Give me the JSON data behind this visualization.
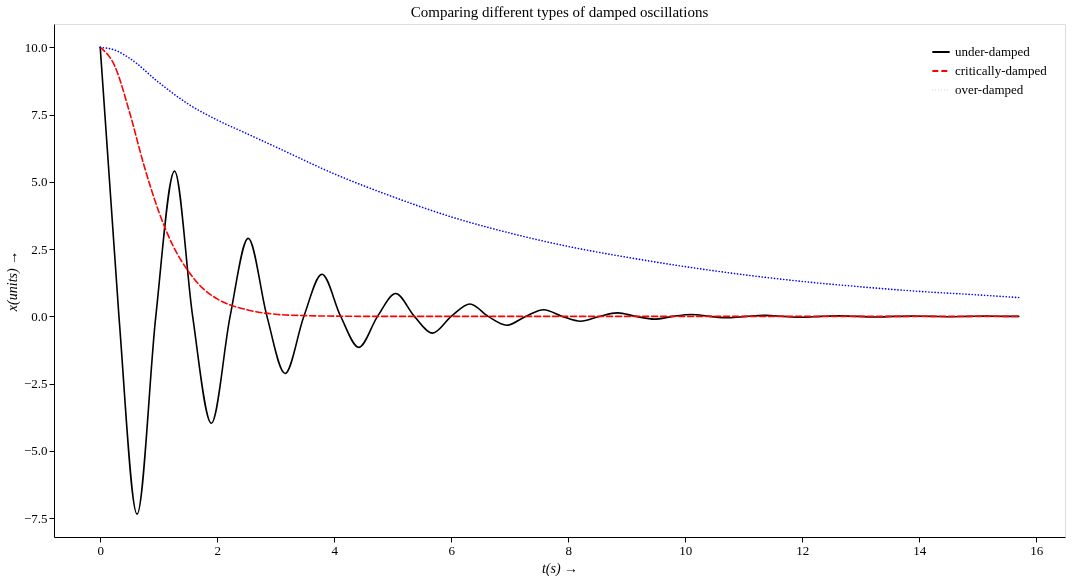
{
  "chart_data": {
    "type": "line",
    "title": "Comparing different types of damped oscillations",
    "xlabel": "t(s) →",
    "ylabel": "x(units) →",
    "xlim": [
      -0.79,
      16.49
    ],
    "ylim": [
      -8.2,
      10.87
    ],
    "xticks": [
      0,
      2,
      4,
      6,
      8,
      10,
      12,
      14,
      16
    ],
    "yticks": [
      {
        "value": -7.5,
        "label": "−7.5"
      },
      {
        "value": -5,
        "label": "−5.0"
      },
      {
        "value": -2.5,
        "label": "−2.5"
      },
      {
        "value": 0,
        "label": "0.0"
      },
      {
        "value": 2.5,
        "label": "2.5"
      },
      {
        "value": 5,
        "label": "5.0"
      },
      {
        "value": 7.5,
        "label": "7.5"
      },
      {
        "value": 10,
        "label": "10.0"
      }
    ],
    "grid": false,
    "legend": "top right",
    "marker": "none",
    "series": [
      {
        "name": "under-damped",
        "color": "#000000",
        "line_style": "solid",
        "x": [
          0,
          0.32,
          0.63,
          0.95,
          1.27,
          1.58,
          1.9,
          2.22,
          2.53,
          2.85,
          3.16,
          3.48,
          3.79,
          4.11,
          4.42,
          4.74,
          5.05,
          5.37,
          5.68,
          6.0,
          6.32,
          6.63,
          6.95,
          7.27,
          7.58,
          7.9,
          8.21,
          8.53,
          8.84,
          9.16,
          9.47,
          9.79,
          10.1,
          10.42,
          10.74,
          11.05,
          11.37,
          11.68,
          12.0,
          12.32,
          12.63,
          12.95,
          13.26,
          13.58,
          13.89,
          14.21,
          14.52,
          14.84,
          15.15,
          15.47,
          15.7
        ],
        "values": [
          10,
          0,
          -7.35,
          0,
          5.4,
          0,
          -3.97,
          0,
          2.9,
          0,
          -2.12,
          0,
          1.57,
          0,
          -1.15,
          0,
          0.85,
          0,
          -0.62,
          0,
          0.46,
          0,
          -0.33,
          0,
          0.25,
          0,
          -0.18,
          0,
          0.13,
          0,
          -0.1,
          0,
          0.07,
          0,
          -0.05,
          0,
          0.04,
          0,
          -0.03,
          0,
          0.02,
          0,
          -0.02,
          0,
          0.01,
          0,
          -0.01,
          0,
          0.01,
          0,
          0
        ]
      },
      {
        "name": "critically-damped",
        "color": "#ff0000",
        "line_style": "dashed",
        "x": [
          0,
          0.25,
          0.5,
          0.75,
          1,
          1.25,
          1.5,
          1.75,
          2,
          2.5,
          3,
          3.5,
          4,
          5,
          15.7
        ],
        "values": [
          10,
          9.3,
          7.6,
          5.6,
          3.9,
          2.6,
          1.7,
          1.05,
          0.65,
          0.25,
          0.08,
          0.03,
          0.01,
          0,
          0
        ]
      },
      {
        "name": "over-damped",
        "color": "#0000ff",
        "line_style": "dotted",
        "x": [
          0,
          0.25,
          0.5,
          1,
          1.5,
          2,
          2.5,
          3,
          4,
          5,
          6,
          7,
          8,
          9,
          10,
          11,
          12,
          13,
          14,
          15,
          15.7
        ],
        "values": [
          10,
          9.9,
          9.6,
          8.7,
          7.9,
          7.3,
          6.8,
          6.3,
          5.3,
          4.45,
          3.7,
          3.1,
          2.6,
          2.2,
          1.85,
          1.55,
          1.3,
          1.1,
          0.93,
          0.8,
          0.7
        ]
      }
    ]
  }
}
